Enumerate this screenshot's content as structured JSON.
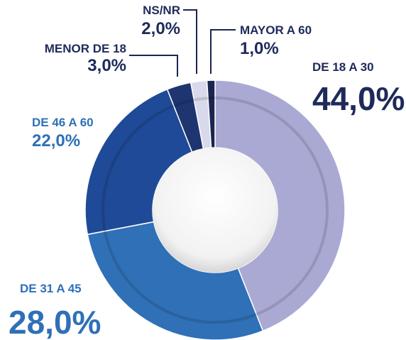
{
  "chart_data": {
    "type": "donut",
    "categories": [
      "DE 18 A 30",
      "DE 31 A 45",
      "DE 46 A 60",
      "MENOR DE 18",
      "NS/NR",
      "MAYOR A 60"
    ],
    "values": [
      44,
      28,
      22,
      3,
      2,
      1
    ],
    "value_labels": [
      "44,0%",
      "28,0%",
      "22,0%",
      "3,0%",
      "2,0%",
      "1,0%"
    ],
    "colors": [
      "#a9a9d4",
      "#2f70b6",
      "#1f4a97",
      "#1e3570",
      "#d9d9ec",
      "#1a2550"
    ]
  }
}
